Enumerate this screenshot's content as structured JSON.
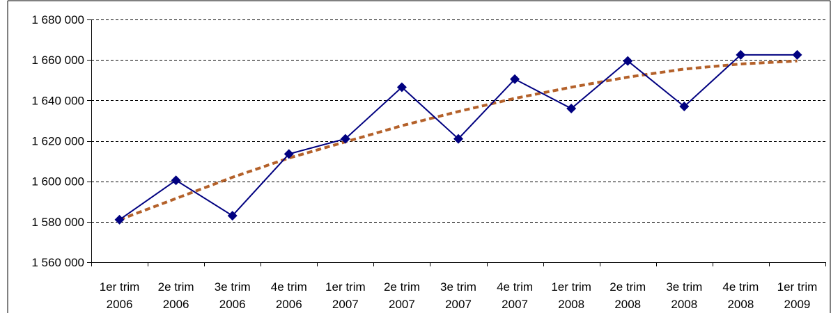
{
  "chart_data": {
    "type": "line",
    "title": "",
    "xlabel": "",
    "ylabel": "",
    "categories": [
      [
        "1er trim",
        "2006"
      ],
      [
        "2e trim",
        "2006"
      ],
      [
        "3e trim",
        "2006"
      ],
      [
        "4e trim",
        "2006"
      ],
      [
        "1er trim",
        "2007"
      ],
      [
        "2e trim",
        "2007"
      ],
      [
        "3e trim",
        "2007"
      ],
      [
        "4e trim",
        "2007"
      ],
      [
        "1er trim",
        "2008"
      ],
      [
        "2e trim",
        "2008"
      ],
      [
        "3e trim",
        "2008"
      ],
      [
        "4e trim",
        "2008"
      ],
      [
        "1er trim",
        "2009"
      ]
    ],
    "ylim": [
      1560000,
      1680000
    ],
    "yticks": [
      1560000,
      1580000,
      1600000,
      1620000,
      1640000,
      1660000,
      1680000
    ],
    "ytick_labels": [
      "1 560 000",
      "1 580 000",
      "1 600 000",
      "1 620 000",
      "1 640 000",
      "1 660 000",
      "1 680 000"
    ],
    "grid": "horizontal-dashed",
    "legend": "none",
    "series": [
      {
        "style": "solid-line-diamond-markers",
        "color": "#000080",
        "values": [
          1581000,
          1600500,
          1583000,
          1613500,
          1621000,
          1646500,
          1621000,
          1650500,
          1636000,
          1659500,
          1637000,
          1662500,
          1662500
        ]
      },
      {
        "style": "dashed-trend",
        "color": "#b4612a",
        "values": [
          1581000,
          1591500,
          1602000,
          1611500,
          1619500,
          1627500,
          1634500,
          1641000,
          1646500,
          1651500,
          1655500,
          1658000,
          1659500
        ]
      }
    ]
  }
}
